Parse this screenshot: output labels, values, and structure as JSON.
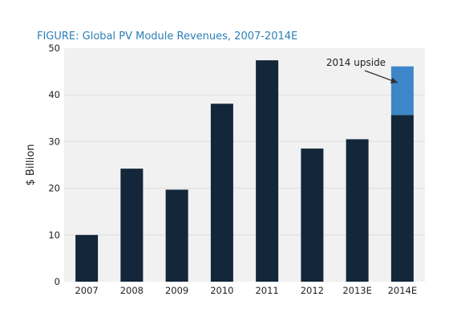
{
  "chart_data": {
    "type": "bar",
    "title": "FIGURE: Global PV Module Revenues, 2007-2014E",
    "ylabel": "$ Billion",
    "xlabel": "",
    "ylim": [
      0,
      50
    ],
    "yticks": [
      0,
      10,
      20,
      30,
      40,
      50
    ],
    "grid": true,
    "categories": [
      "2007",
      "2008",
      "2009",
      "2010",
      "2011",
      "2012",
      "2013E",
      "2014E"
    ],
    "series": [
      {
        "values": [
          10,
          24.2,
          19.7,
          38.1,
          47.4,
          28.5,
          30.5,
          35.7
        ]
      },
      {
        "values": [
          0,
          0,
          0,
          0,
          0,
          0,
          0,
          10.4
        ]
      }
    ],
    "annotation": {
      "text": "2014 upside",
      "target_category": "2014E"
    },
    "colors": {
      "base": "#13263a",
      "upside": "#3d87c9",
      "plot_bg": "#f1f1f1",
      "grid": "#dedede",
      "title": "#2c7fb8"
    }
  }
}
